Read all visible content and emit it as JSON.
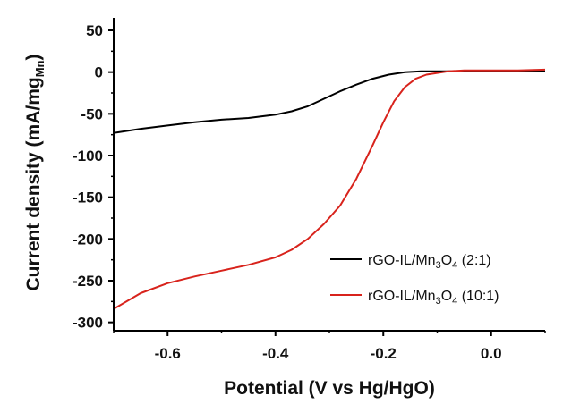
{
  "chart_data": {
    "type": "line",
    "xlabel": "Potential (V vs Hg/HgO)",
    "ylabel_main": "Current density (mA/mg",
    "ylabel_sub": "Mn",
    "ylabel_close": ")",
    "xlim": [
      -0.7,
      0.1
    ],
    "ylim": [
      -310,
      65
    ],
    "x_ticks": [
      -0.6,
      -0.4,
      -0.2,
      0.0
    ],
    "x_tick_labels": [
      "-0.6",
      "-0.4",
      "-0.2",
      "0.0"
    ],
    "y_ticks": [
      50,
      0,
      -50,
      -100,
      -150,
      -200,
      -250,
      -300
    ],
    "y_tick_labels": [
      "50",
      "0",
      "-50",
      "-100",
      "-150",
      "-200",
      "-250",
      "-300"
    ],
    "grid": false,
    "legend_position": "bottom-right",
    "series": [
      {
        "name": "rGO-IL/Mn3O4 (2:1)",
        "legend": {
          "prefix": "rGO-IL/Mn",
          "sub1": "3",
          "mid": "O",
          "sub2": "4",
          "suffix": " (2:1)"
        },
        "color": "#000000",
        "x": [
          -0.7,
          -0.65,
          -0.6,
          -0.55,
          -0.5,
          -0.45,
          -0.4,
          -0.37,
          -0.34,
          -0.31,
          -0.28,
          -0.25,
          -0.22,
          -0.19,
          -0.16,
          -0.13,
          -0.1,
          -0.05,
          0.0,
          0.05,
          0.1
        ],
        "y": [
          -73,
          -68,
          -64,
          -60,
          -57,
          -55,
          -51,
          -47,
          -41,
          -32,
          -23,
          -15,
          -8,
          -3,
          0,
          1,
          1,
          1,
          1,
          1,
          1
        ]
      },
      {
        "name": "rGO-IL/Mn3O4 (10:1)",
        "legend": {
          "prefix": "rGO-IL/Mn",
          "sub1": "3",
          "mid": "O",
          "sub2": "4",
          "suffix": " (10:1)"
        },
        "color": "#d8231c",
        "x": [
          -0.7,
          -0.65,
          -0.6,
          -0.55,
          -0.5,
          -0.45,
          -0.4,
          -0.37,
          -0.34,
          -0.31,
          -0.28,
          -0.25,
          -0.22,
          -0.2,
          -0.18,
          -0.16,
          -0.14,
          -0.12,
          -0.1,
          -0.08,
          -0.05,
          0.0,
          0.05,
          0.1
        ],
        "y": [
          -284,
          -265,
          -253,
          -245,
          -238,
          -231,
          -222,
          -213,
          -200,
          -182,
          -160,
          -128,
          -88,
          -60,
          -35,
          -18,
          -8,
          -3,
          -1,
          1,
          2,
          2,
          2,
          3
        ]
      }
    ]
  }
}
